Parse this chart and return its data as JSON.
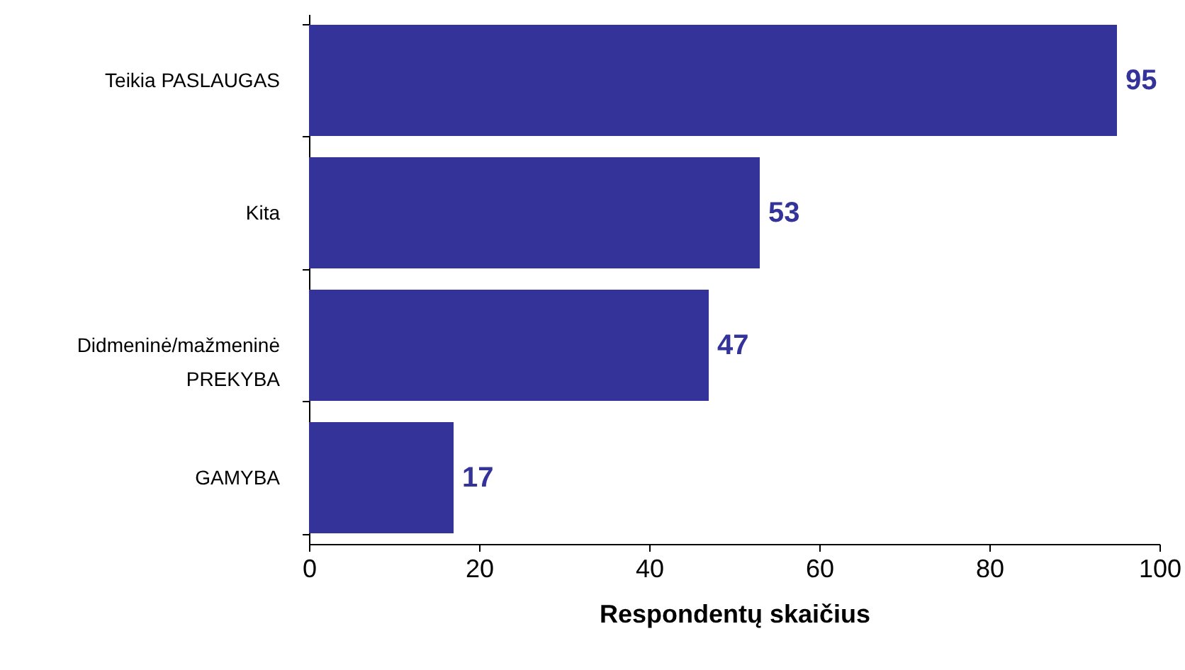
{
  "chart_data": {
    "type": "bar",
    "orientation": "horizontal",
    "xlabel": "Respondentų skaičius",
    "categories": [
      "Teikia PASLAUGAS",
      "Kita",
      "Didmeninė/mažmeninė PREKYBA",
      "GAMYBA"
    ],
    "values": [
      95,
      53,
      47,
      17
    ],
    "color": "#333399",
    "data_labels": true,
    "xlim": [
      0,
      100
    ],
    "xticks": [
      0,
      20,
      40,
      60,
      80,
      100
    ]
  }
}
